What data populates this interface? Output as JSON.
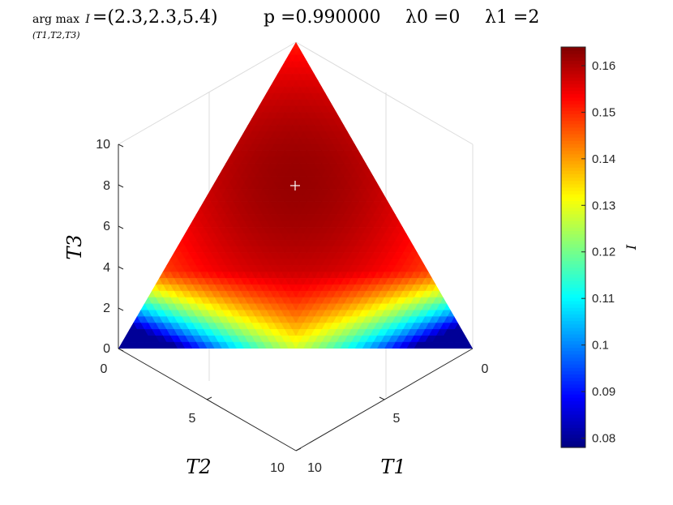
{
  "title": {
    "argmax_word": "arg max",
    "argmax_var": "I",
    "argmax_sub": "(T1,T2,T3)",
    "argmax_value": "=(2.3,2.3,5.4)",
    "p_text": "p =0.990000",
    "lambda0_text": "λ0 =0",
    "lambda1_text": "λ1 =2"
  },
  "chart_data": {
    "type": "heatmap",
    "projection": "3d-ternary-simplex",
    "constraint": "T1 + T2 + T3 = 10",
    "axes": {
      "T1": {
        "label": "T1",
        "range": [
          0,
          10
        ],
        "ticks": [
          "0",
          "5",
          "10"
        ]
      },
      "T2": {
        "label": "T2",
        "range": [
          0,
          10
        ],
        "ticks": [
          "0",
          "5",
          "10"
        ]
      },
      "T3": {
        "label": "T3",
        "range": [
          0,
          10
        ],
        "ticks": [
          "0",
          "2",
          "4",
          "6",
          "8",
          "10"
        ]
      }
    },
    "maximum_marker": {
      "T1": 2.3,
      "T2": 2.3,
      "T3": 5.4,
      "symbol": "+"
    },
    "vertex_values": {
      "T1_vertex": 0.08,
      "T2_vertex": 0.08,
      "T3_vertex": 0.142
    },
    "peak_value": 0.162,
    "colorbar": {
      "label": "I",
      "range": [
        0.078,
        0.164
      ],
      "ticks": [
        "0.08",
        "0.09",
        "0.1",
        "0.11",
        "0.12",
        "0.13",
        "0.14",
        "0.15",
        "0.16"
      ],
      "colormap": "jet"
    },
    "grid": true
  }
}
